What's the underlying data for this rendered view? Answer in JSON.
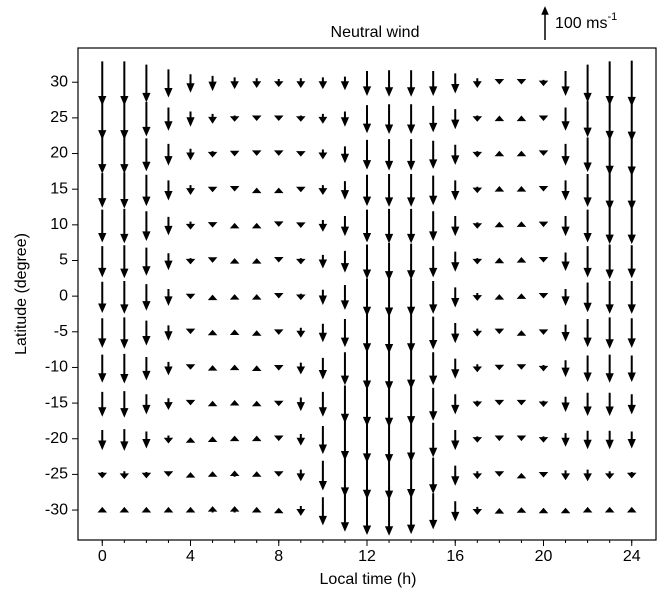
{
  "chart_data": {
    "type": "quiver",
    "title": "Neutral wind",
    "xlabel": "Local time (h)",
    "ylabel": "Latitude (degree)",
    "key": {
      "value": 100,
      "unit": "ms",
      "exponent": "-1"
    },
    "color": "#000000",
    "xlim": [
      -1.1,
      25.1
    ],
    "ylim": [
      -34.2,
      34.8
    ],
    "xticks": [
      0,
      4,
      8,
      12,
      16,
      20,
      24
    ],
    "yticks": [
      -30,
      -25,
      -20,
      -15,
      -10,
      -5,
      0,
      5,
      10,
      15,
      20,
      25,
      30
    ],
    "x": [
      0,
      1,
      2,
      3,
      4,
      5,
      6,
      7,
      8,
      9,
      10,
      11,
      12,
      13,
      14,
      15,
      16,
      17,
      18,
      19,
      20,
      21,
      22,
      23,
      24
    ],
    "latitudes": [
      30,
      25,
      20,
      15,
      10,
      5,
      0,
      -5,
      -10,
      -15,
      -20,
      -25,
      -30
    ],
    "v": [
      [
        -130,
        -130,
        -110,
        -80,
        -50,
        -40,
        -30,
        -25,
        -20,
        -25,
        -30,
        -35,
        -70,
        -75,
        -75,
        -70,
        -55,
        -25,
        -5,
        -5,
        -15,
        -70,
        -110,
        -130,
        -135
      ],
      [
        -120,
        -120,
        -100,
        -65,
        -40,
        -25,
        -15,
        -10,
        -10,
        -15,
        -25,
        -40,
        -80,
        -85,
        -85,
        -75,
        -55,
        -15,
        5,
        5,
        -10,
        -65,
        -105,
        -125,
        -130
      ],
      [
        -110,
        -110,
        -95,
        -60,
        -30,
        -15,
        -8,
        -5,
        -5,
        -10,
        -25,
        -45,
        -85,
        -90,
        -90,
        -80,
        -55,
        -15,
        8,
        8,
        -5,
        -60,
        -100,
        -120,
        -125
      ],
      [
        -100,
        -105,
        -90,
        -55,
        -25,
        -10,
        -5,
        0,
        0,
        -10,
        -25,
        -50,
        -90,
        -95,
        -95,
        -85,
        -55,
        -15,
        10,
        10,
        -5,
        -55,
        -95,
        -115,
        -115
      ],
      [
        -95,
        -100,
        -85,
        -50,
        -20,
        -8,
        3,
        3,
        -3,
        -10,
        -30,
        -55,
        -95,
        -100,
        -100,
        -85,
        -55,
        -15,
        10,
        12,
        -5,
        -55,
        -95,
        -105,
        -105
      ],
      [
        -90,
        -95,
        -80,
        -45,
        -15,
        -5,
        5,
        5,
        -3,
        -15,
        -35,
        -60,
        -100,
        -110,
        -105,
        -90,
        -55,
        -15,
        8,
        12,
        -3,
        -50,
        -90,
        -100,
        -95
      ],
      [
        -90,
        -95,
        -75,
        -45,
        -10,
        0,
        3,
        3,
        -5,
        -15,
        -40,
        -70,
        -110,
        -115,
        -110,
        -95,
        -55,
        -20,
        3,
        8,
        -5,
        -45,
        -85,
        -95,
        -95
      ],
      [
        -85,
        -90,
        -70,
        -40,
        -5,
        3,
        5,
        0,
        -10,
        -25,
        -50,
        -80,
        -115,
        -120,
        -115,
        -95,
        -55,
        -20,
        -5,
        0,
        -10,
        -45,
        -80,
        -90,
        -85
      ],
      [
        -80,
        -85,
        -65,
        -35,
        -5,
        5,
        8,
        3,
        -10,
        -30,
        -60,
        -95,
        -125,
        -130,
        -120,
        -95,
        -55,
        -20,
        -8,
        -5,
        -15,
        -45,
        -75,
        -80,
        -75
      ],
      [
        -70,
        -75,
        -55,
        -30,
        -5,
        5,
        10,
        5,
        -10,
        -35,
        -70,
        -110,
        -130,
        -135,
        -125,
        -95,
        -55,
        -15,
        -5,
        -5,
        -15,
        -40,
        -65,
        -65,
        -55
      ],
      [
        -55,
        -60,
        -45,
        -20,
        0,
        5,
        10,
        10,
        -5,
        -30,
        -80,
        -120,
        -135,
        -140,
        -130,
        -100,
        -55,
        -15,
        -5,
        -5,
        -15,
        -35,
        -50,
        -50,
        -45
      ],
      [
        -15,
        -20,
        -15,
        -5,
        5,
        10,
        15,
        10,
        -5,
        -30,
        -85,
        -125,
        -140,
        -145,
        -135,
        -105,
        -55,
        -20,
        -5,
        0,
        -10,
        -25,
        -30,
        -20,
        -15
      ],
      [
        10,
        10,
        10,
        10,
        10,
        15,
        15,
        10,
        5,
        -25,
        -80,
        -120,
        -140,
        -145,
        -135,
        -105,
        -55,
        -20,
        3,
        8,
        5,
        5,
        10,
        10,
        10
      ]
    ]
  }
}
